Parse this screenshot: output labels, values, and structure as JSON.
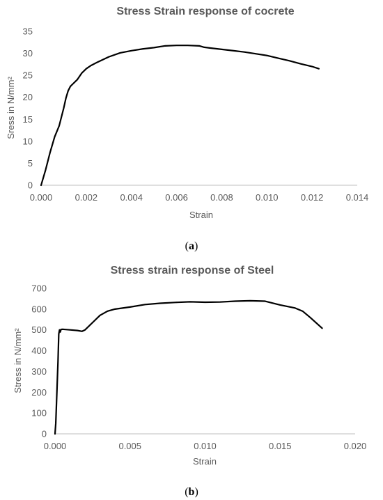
{
  "chart_data": [
    {
      "type": "line",
      "title": "Stress Strain response of cocrete",
      "xlabel": "Strain",
      "ylabel": "Sress in N/mm²",
      "xlim": [
        0,
        0.014
      ],
      "ylim": [
        0,
        35
      ],
      "x_ticks": [
        "0.000",
        "0.002",
        "0.004",
        "0.006",
        "0.008",
        "0.010",
        "0.012",
        "0.014"
      ],
      "y_ticks": [
        "0",
        "5",
        "10",
        "15",
        "20",
        "25",
        "30",
        "35"
      ],
      "grid": false,
      "legend": "none",
      "series": [
        {
          "color": "#000000",
          "x": [
            0,
            0.0002,
            0.0004,
            0.0006,
            0.0008,
            0.001,
            0.0011,
            0.0012,
            0.0013,
            0.0014,
            0.0016,
            0.0018,
            0.002,
            0.0022,
            0.0025,
            0.003,
            0.0035,
            0.004,
            0.0045,
            0.005,
            0.0055,
            0.006,
            0.0065,
            0.007,
            0.0072,
            0.0075,
            0.008,
            0.0085,
            0.009,
            0.0095,
            0.01,
            0.0105,
            0.011,
            0.0115,
            0.012,
            0.0123
          ],
          "y": [
            0,
            3.5,
            7.5,
            11,
            13.5,
            17.5,
            19.8,
            21.5,
            22.5,
            23,
            24,
            25.5,
            26.5,
            27.2,
            28,
            29.2,
            30.1,
            30.6,
            31,
            31.3,
            31.7,
            31.8,
            31.8,
            31.7,
            31.4,
            31.2,
            30.9,
            30.6,
            30.3,
            29.9,
            29.5,
            28.9,
            28.3,
            27.6,
            27.0,
            26.5
          ]
        }
      ],
      "caption_open": "(",
      "caption_letter": "a",
      "caption_close": ")"
    },
    {
      "type": "line",
      "title": "Stress strain response of Steel",
      "xlabel": "Strain",
      "ylabel": "Stress in N/mm²",
      "xlim": [
        0,
        0.02
      ],
      "ylim": [
        0,
        700
      ],
      "x_ticks": [
        "0.000",
        "0.005",
        "0.010",
        "0.015",
        "0.020"
      ],
      "y_ticks": [
        "0",
        "100",
        "200",
        "300",
        "400",
        "500",
        "600",
        "700"
      ],
      "grid": false,
      "legend": "none",
      "series": [
        {
          "color": "#000000",
          "x": [
            0,
            5e-05,
            0.0001,
            0.00015,
            0.0002,
            0.00025,
            0.0003,
            0.00035,
            0.0004,
            0.0005,
            0.001,
            0.0015,
            0.0018,
            0.002,
            0.0025,
            0.003,
            0.0035,
            0.004,
            0.005,
            0.006,
            0.007,
            0.008,
            0.009,
            0.01,
            0.011,
            0.012,
            0.013,
            0.014,
            0.015,
            0.016,
            0.0165,
            0.017,
            0.0178
          ],
          "y": [
            0,
            50,
            150,
            250,
            350,
            480,
            500,
            490,
            502,
            503,
            500,
            497,
            493,
            500,
            535,
            570,
            590,
            600,
            610,
            622,
            628,
            632,
            635,
            633,
            634,
            638,
            640,
            638,
            620,
            605,
            590,
            560,
            508
          ]
        }
      ],
      "caption_open": "(",
      "caption_letter": "b",
      "caption_close": ")"
    }
  ]
}
